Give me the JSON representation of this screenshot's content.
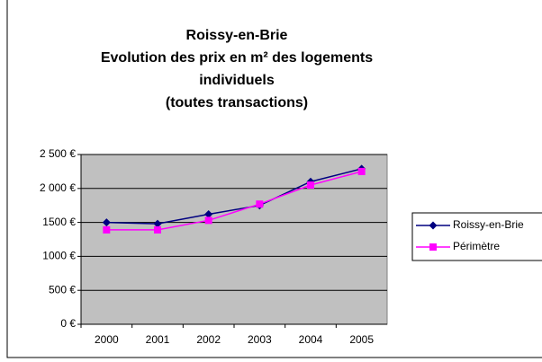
{
  "chart_data": {
    "type": "line",
    "title": [
      "Roissy-en-Brie",
      "Evolution des prix en m² des logements",
      "individuels",
      "(toutes transactions)"
    ],
    "categories": [
      "2000",
      "2001",
      "2002",
      "2003",
      "2004",
      "2005"
    ],
    "series": [
      {
        "name": "Roissy-en-Brie",
        "color": "#000080",
        "marker": "diamond",
        "values": [
          1500,
          1480,
          1620,
          1750,
          2100,
          2290
        ]
      },
      {
        "name": "Périmètre",
        "color": "#ff00ff",
        "marker": "square",
        "values": [
          1390,
          1390,
          1530,
          1770,
          2050,
          2250
        ]
      }
    ],
    "ylim": [
      0,
      2500
    ],
    "yticks": [
      {
        "value": 0,
        "label": "0 €"
      },
      {
        "value": 500,
        "label": "500 €"
      },
      {
        "value": 1000,
        "label": "1000 €"
      },
      {
        "value": 1500,
        "label": "1500 €"
      },
      {
        "value": 2000,
        "label": "2 000 €"
      },
      {
        "value": 2500,
        "label": "2 500 €"
      }
    ],
    "grid": true,
    "legend": "right"
  }
}
